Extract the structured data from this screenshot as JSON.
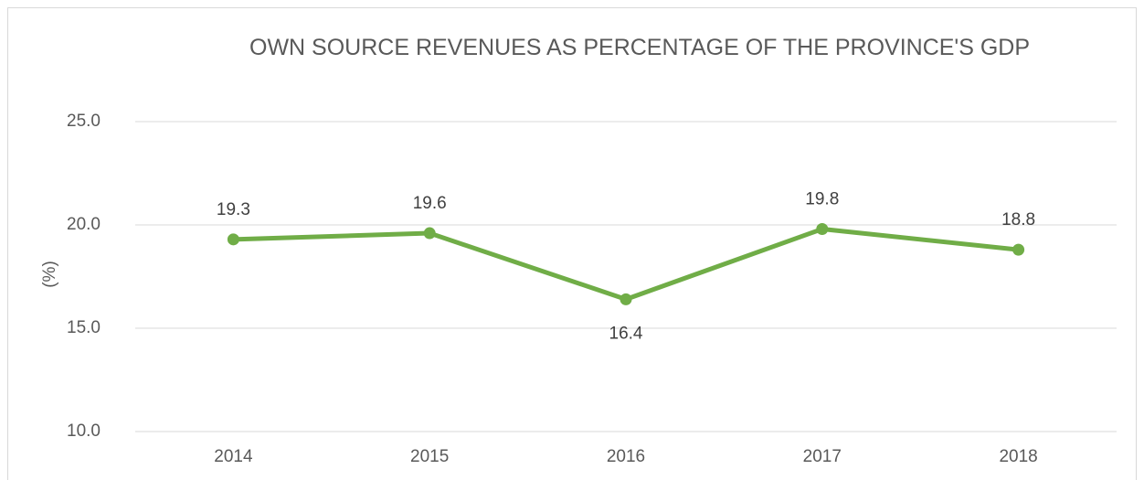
{
  "chart_data": {
    "type": "line",
    "title": "OWN SOURCE REVENUES AS PERCENTAGE OF THE PROVINCE'S GDP",
    "y_label": "(%)",
    "categories": [
      "2014",
      "2015",
      "2016",
      "2017",
      "2018"
    ],
    "series": [
      {
        "name": "Own source revenues",
        "color": "#70ad47",
        "values": [
          19.3,
          19.6,
          16.4,
          19.8,
          18.8
        ]
      }
    ],
    "ylim": [
      10,
      25
    ],
    "yticks": [
      {
        "value": 10,
        "label": "10.0"
      },
      {
        "value": 15,
        "label": "15.0"
      },
      {
        "value": 20,
        "label": "20.0"
      },
      {
        "value": 25,
        "label": "25.0"
      }
    ],
    "grid": true
  }
}
